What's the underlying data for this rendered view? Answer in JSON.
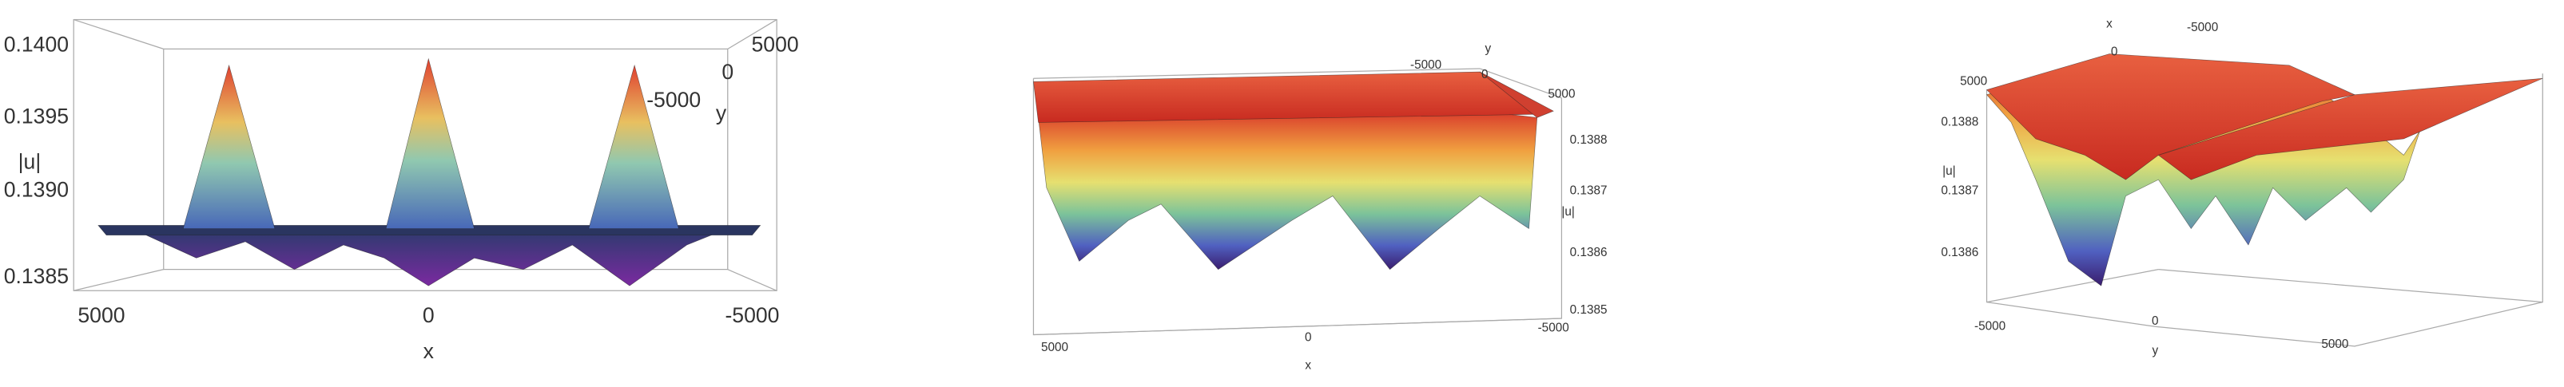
{
  "panels": [
    {
      "z_label": "|u|",
      "x_label": "x",
      "y_label": "y",
      "z_ticks": [
        "0.1400",
        "0.1395",
        "0.1390",
        "0.1385"
      ],
      "x_ticks": [
        "5000",
        "0",
        "-5000"
      ],
      "y_ticks": [
        "5000",
        "0",
        "-5000"
      ]
    },
    {
      "z_label": "|u|",
      "x_label": "x",
      "y_label": "y",
      "z_ticks": [
        "0.1388",
        "0.1387",
        "0.1386",
        "0.1385"
      ],
      "x_ticks": [
        "5000",
        "0",
        "-5000"
      ],
      "y_ticks": [
        "-5000",
        "0",
        "5000"
      ]
    },
    {
      "z_label": "|u|",
      "x_label": "x",
      "y_label": "y",
      "z_ticks": [
        "0.1388",
        "0.1387",
        "0.1386"
      ],
      "x_ticks": [
        "-5000",
        "0",
        "5000"
      ],
      "y_ticks": [
        "-5000",
        "0",
        "5000"
      ]
    }
  ]
}
